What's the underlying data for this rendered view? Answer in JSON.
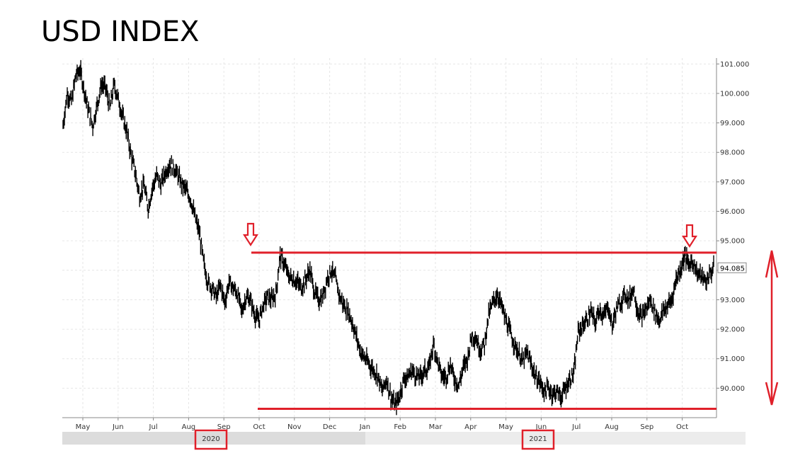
{
  "title": "USD INDEX",
  "chart_data": {
    "type": "line",
    "title": "USD INDEX",
    "xlabel": "",
    "ylabel": "",
    "ylim": [
      89.0,
      101.2
    ],
    "y_ticks": [
      "90.000",
      "91.000",
      "92.000",
      "93.000",
      "94.000",
      "95.000",
      "96.000",
      "97.000",
      "98.000",
      "99.000",
      "100.000",
      "101.000"
    ],
    "x_ticks": [
      "May",
      "Jun",
      "Jul",
      "Aug",
      "Sep",
      "Oct",
      "Nov",
      "Dec",
      "Jan",
      "Feb",
      "Mar",
      "Apr",
      "May",
      "Jun",
      "Jul",
      "Aug",
      "Sep",
      "Oct"
    ],
    "years": [
      "2020",
      "2021"
    ],
    "last_value_label": "94.085",
    "grid": true,
    "series": [
      {
        "values": [
          98.9,
          100.0,
          99.7,
          100.6,
          100.8,
          100.1,
          99.4,
          98.9,
          99.6,
          100.3,
          100.2,
          99.5,
          100.3,
          99.8,
          99.2,
          98.7,
          97.9,
          97.3,
          96.5,
          96.9,
          96.1,
          96.8,
          97.2,
          96.9,
          97.3,
          97.6,
          97.5,
          97.2,
          96.9,
          96.7,
          96.4,
          95.8,
          95.3,
          94.3,
          93.6,
          93.4,
          93.1,
          93.5,
          92.9,
          93.6,
          93.4,
          93.2,
          92.6,
          93.1,
          93.0,
          92.5,
          92.3,
          92.8,
          93.1,
          93.0,
          93.2,
          94.5,
          94.2,
          93.8,
          93.7,
          93.6,
          93.4,
          93.7,
          94.0,
          93.3,
          93.0,
          93.1,
          93.7,
          94.0,
          93.7,
          93.1,
          92.8,
          92.6,
          92.2,
          91.7,
          91.2,
          91.0,
          90.8,
          90.6,
          90.4,
          89.9,
          90.3,
          89.7,
          89.4,
          89.7,
          90.3,
          90.4,
          90.6,
          90.4,
          90.4,
          90.6,
          90.7,
          91.5,
          90.9,
          90.4,
          90.4,
          90.8,
          90.3,
          90.1,
          90.7,
          91.0,
          91.8,
          91.7,
          91.3,
          91.5,
          92.5,
          92.9,
          93.2,
          92.8,
          92.3,
          91.9,
          91.5,
          91.2,
          90.9,
          91.2,
          90.8,
          90.4,
          90.2,
          89.9,
          90.0,
          89.8,
          89.9,
          89.7,
          90.0,
          90.3,
          90.5,
          91.9,
          92.1,
          92.3,
          92.6,
          92.2,
          92.7,
          92.4,
          92.8,
          92.1,
          92.7,
          92.9,
          93.2,
          93.0,
          93.4,
          92.6,
          92.4,
          92.7,
          93.0,
          92.6,
          92.3,
          92.6,
          92.8,
          93.0,
          93.7,
          94.0,
          94.5,
          94.2,
          94.3,
          93.9,
          93.8,
          93.6,
          93.9,
          94.085
        ]
      }
    ],
    "annotations": {
      "resistance_line": 94.6,
      "support_line": 89.3,
      "resistance_label": "",
      "support_label": ""
    },
    "colors": {
      "price": "#000000",
      "annotation": "#e0202a",
      "grid": "#e6e6e6",
      "axis": "#888888",
      "band": "#e4e4e4"
    }
  }
}
